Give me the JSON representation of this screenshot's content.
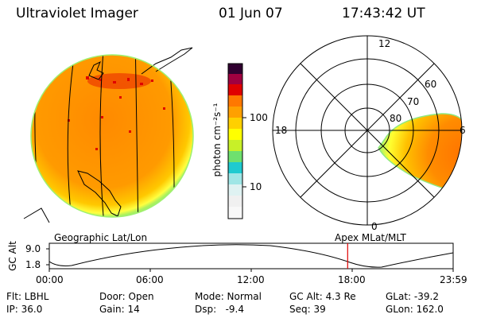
{
  "header": {
    "instrument": "Ultraviolet Imager",
    "date": "01 Jun 07",
    "time": "17:43:42 UT"
  },
  "colorbar": {
    "unit_label": "photon cm⁻²s⁻¹",
    "ticks": [
      "100",
      "10"
    ],
    "scale": "log",
    "colors": [
      "#f0f0f0",
      "#9fe6e6",
      "#1fcad0",
      "#6ee06e",
      "#c8f028",
      "#ffff00",
      "#ffd000",
      "#ffa000",
      "#ff7800",
      "#e00000",
      "#a00040",
      "#300030"
    ]
  },
  "left_panel": {
    "caption": "Geographic Lat/Lon"
  },
  "right_panel": {
    "caption": "Apex MLat/MLT",
    "mlt_labels": {
      "top": "12",
      "left": "18",
      "right": "6",
      "bottom": "0"
    },
    "lat_labels": [
      "60",
      "70",
      "80"
    ]
  },
  "orbit_plot": {
    "ylabel": "GC Alt",
    "y_ticks": [
      "9.0",
      "1.8"
    ],
    "x_ticks": [
      "00:00",
      "06:00",
      "12:00",
      "18:00",
      "23:59"
    ],
    "current_marker_hour": 17.73,
    "line_color": "#000000",
    "marker_color": "#e00000"
  },
  "status": {
    "row1": {
      "flt": "Flt: LBHL",
      "door": "Door: Open",
      "mode": "Mode: Normal",
      "gcalt": "GC Alt: 4.3 Re",
      "glat": "GLat: -39.2"
    },
    "row2": {
      "ip": "IP: 36.0",
      "gain": "Gain: 14",
      "dsp": "Dsp:   -9.4",
      "seq": "Seq: 39",
      "glon": "GLon: 162.0"
    }
  }
}
